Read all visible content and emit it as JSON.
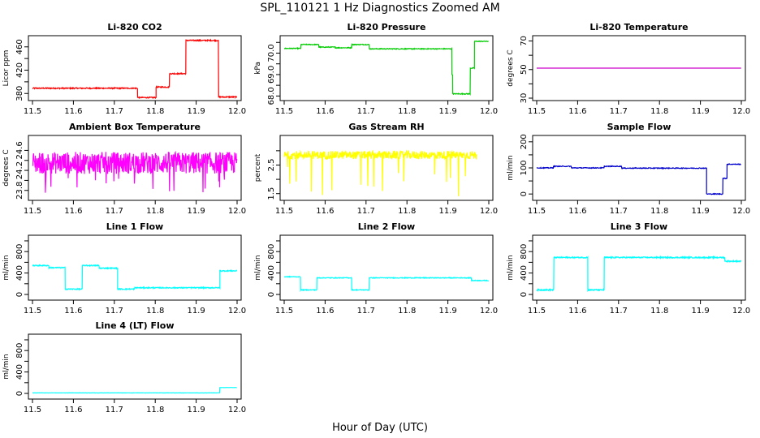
{
  "figure": {
    "title": "SPL_110121  1 Hz Diagnostics Zoomed AM",
    "xlabel": "Hour of Day (UTC)"
  },
  "chart_data": [
    {
      "type": "line",
      "title": "Li-820 CO2",
      "ylabel": "Licor ppm",
      "color": "#ff0000",
      "xlim": [
        11.5,
        12.0
      ],
      "xticks": [
        "11.5",
        "11.6",
        "11.7",
        "11.8",
        "11.9",
        "12.0"
      ],
      "ylim": [
        372,
        475
      ],
      "yticks": [
        380,
        400,
        420,
        440,
        460
      ],
      "yticklabels": [
        "380",
        "",
        "420",
        "",
        "460"
      ],
      "noise": 1.0,
      "segments": [
        [
          11.5,
          11.757,
          389
        ],
        [
          11.757,
          11.802,
          373
        ],
        [
          11.802,
          11.835,
          391
        ],
        [
          11.835,
          11.875,
          414
        ],
        [
          11.875,
          11.955,
          471
        ],
        [
          11.955,
          12.0,
          374
        ]
      ]
    },
    {
      "type": "line",
      "title": "Li-820 Pressure",
      "ylabel": "kPa",
      "color": "#00cc00",
      "xlim": [
        11.5,
        12.0
      ],
      "xticks": [
        "11.5",
        "11.6",
        "11.7",
        "11.8",
        "11.9",
        "12.0"
      ],
      "ylim": [
        67.9,
        70.7
      ],
      "yticks": [
        68.0,
        68.5,
        69.0,
        69.5,
        70.0,
        70.5
      ],
      "yticklabels": [
        "68.0",
        "",
        "69.0",
        "",
        "70.0",
        ""
      ],
      "noise": 0.02,
      "segments": [
        [
          11.5,
          11.541,
          70.22
        ],
        [
          11.541,
          11.585,
          70.4
        ],
        [
          11.585,
          11.625,
          70.28
        ],
        [
          11.625,
          11.665,
          70.25
        ],
        [
          11.665,
          11.708,
          70.4
        ],
        [
          11.708,
          11.91,
          70.2
        ],
        [
          11.91,
          11.912,
          69.0
        ],
        [
          11.912,
          11.955,
          68.1
        ],
        [
          11.955,
          11.965,
          69.3
        ],
        [
          11.965,
          12.0,
          70.55
        ]
      ]
    },
    {
      "type": "line",
      "title": "Li-820 Temperature",
      "ylabel": "degrees C",
      "color": "#cc00cc",
      "xlim": [
        11.5,
        12.0
      ],
      "xticks": [
        "11.5",
        "11.6",
        "11.7",
        "11.8",
        "11.9",
        "12.0"
      ],
      "ylim": [
        30,
        72
      ],
      "yticks": [
        30,
        40,
        50,
        60,
        70
      ],
      "yticklabels": [
        "30",
        "",
        "50",
        "",
        "70"
      ],
      "noise": 0,
      "segments": [
        [
          11.5,
          12.0,
          51.0
        ]
      ]
    },
    {
      "type": "line",
      "title": "Ambient Box Temperature",
      "ylabel": "degrees C",
      "color": "#ff00ff",
      "xlim": [
        11.5,
        12.0
      ],
      "xticks": [
        "11.5",
        "11.6",
        "11.7",
        "11.8",
        "11.9",
        "12.0"
      ],
      "ylim": [
        23.65,
        24.85
      ],
      "yticks": [
        23.8,
        24.0,
        24.2,
        24.4,
        24.6
      ],
      "yticklabels": [
        "23.8",
        "",
        "24.2",
        "",
        "24.6"
      ],
      "noise": 0.22,
      "segments": [
        [
          11.5,
          12.0,
          24.35
        ]
      ]
    },
    {
      "type": "line",
      "title": "Gas Stream RH",
      "ylabel": "percent",
      "color": "#ffff00",
      "xlim": [
        11.5,
        12.0
      ],
      "xticks": [
        "11.5",
        "11.6",
        "11.7",
        "11.8",
        "11.9",
        "12.0"
      ],
      "ylim": [
        1.35,
        3.45
      ],
      "yticks": [
        1.5,
        2.0,
        2.5,
        3.0
      ],
      "yticklabels": [
        "1.5",
        "",
        "2.5",
        ""
      ],
      "noise": 0.14,
      "segments": [
        [
          11.5,
          11.97,
          2.85
        ]
      ]
    },
    {
      "type": "line",
      "title": "Sample Flow",
      "ylabel": "ml/min",
      "color": "#0000cc",
      "xlim": [
        11.5,
        12.0
      ],
      "xticks": [
        "11.5",
        "11.6",
        "11.7",
        "11.8",
        "11.9",
        "12.0"
      ],
      "ylim": [
        -15,
        215
      ],
      "yticks": [
        0,
        50,
        100,
        150,
        200
      ],
      "yticklabels": [
        "0",
        "",
        "100",
        "",
        "200"
      ],
      "noise": 1.5,
      "segments": [
        [
          11.5,
          11.541,
          100
        ],
        [
          11.541,
          11.585,
          106
        ],
        [
          11.585,
          11.665,
          100
        ],
        [
          11.665,
          11.708,
          106
        ],
        [
          11.708,
          11.915,
          99
        ],
        [
          11.915,
          11.955,
          0
        ],
        [
          11.955,
          11.965,
          60
        ],
        [
          11.965,
          12.0,
          114
        ]
      ]
    },
    {
      "type": "line",
      "title": "Line 1 Flow",
      "ylabel": "ml/min",
      "color": "#00ffff",
      "xlim": [
        11.5,
        12.0
      ],
      "xticks": [
        "11.5",
        "11.6",
        "11.7",
        "11.8",
        "11.9",
        "12.0"
      ],
      "ylim": [
        -60,
        1060
      ],
      "yticks": [
        0,
        200,
        400,
        600,
        800,
        1000
      ],
      "yticklabels": [
        "0",
        "",
        "400",
        "",
        "800",
        ""
      ],
      "noise": 10,
      "segments": [
        [
          11.5,
          11.54,
          540
        ],
        [
          11.54,
          11.58,
          500
        ],
        [
          11.58,
          11.622,
          100
        ],
        [
          11.622,
          11.663,
          540
        ],
        [
          11.663,
          11.708,
          490
        ],
        [
          11.708,
          11.75,
          100
        ],
        [
          11.75,
          11.958,
          125
        ],
        [
          11.958,
          12.0,
          440
        ]
      ]
    },
    {
      "type": "line",
      "title": "Line 2 Flow",
      "ylabel": "ml/min",
      "color": "#00ffff",
      "xlim": [
        11.5,
        12.0
      ],
      "xticks": [
        "11.5",
        "11.6",
        "11.7",
        "11.8",
        "11.9",
        "12.0"
      ],
      "ylim": [
        -60,
        1060
      ],
      "yticks": [
        0,
        200,
        400,
        600,
        800,
        1000
      ],
      "yticklabels": [
        "0",
        "",
        "400",
        "",
        "800",
        ""
      ],
      "noise": 7,
      "segments": [
        [
          11.5,
          11.54,
          330
        ],
        [
          11.54,
          11.58,
          85
        ],
        [
          11.58,
          11.665,
          310
        ],
        [
          11.665,
          11.708,
          85
        ],
        [
          11.708,
          11.958,
          310
        ],
        [
          11.958,
          12.0,
          260
        ]
      ]
    },
    {
      "type": "line",
      "title": "Line 3 Flow",
      "ylabel": "ml/min",
      "color": "#00ffff",
      "xlim": [
        11.5,
        12.0
      ],
      "xticks": [
        "11.5",
        "11.6",
        "11.7",
        "11.8",
        "11.9",
        "12.0"
      ],
      "ylim": [
        -60,
        1060
      ],
      "yticks": [
        0,
        200,
        400,
        600,
        800,
        1000
      ],
      "yticklabels": [
        "0",
        "",
        "400",
        "",
        "800",
        ""
      ],
      "noise": 12,
      "segments": [
        [
          11.5,
          11.542,
          85
        ],
        [
          11.542,
          11.625,
          690
        ],
        [
          11.625,
          11.665,
          85
        ],
        [
          11.665,
          11.96,
          690
        ],
        [
          11.96,
          12.0,
          620
        ]
      ]
    },
    {
      "type": "line",
      "title": "Line 4 (LT) Flow",
      "ylabel": "ml/min",
      "color": "#00ffff",
      "xlim": [
        11.5,
        12.0
      ],
      "xticks": [
        "11.5",
        "11.6",
        "11.7",
        "11.8",
        "11.9",
        "12.0"
      ],
      "ylim": [
        -60,
        1060
      ],
      "yticks": [
        0,
        200,
        400,
        600,
        800,
        1000
      ],
      "yticklabels": [
        "0",
        "",
        "400",
        "",
        "800",
        ""
      ],
      "noise": 2,
      "segments": [
        [
          11.5,
          11.958,
          10
        ],
        [
          11.958,
          12.0,
          110
        ]
      ]
    }
  ]
}
